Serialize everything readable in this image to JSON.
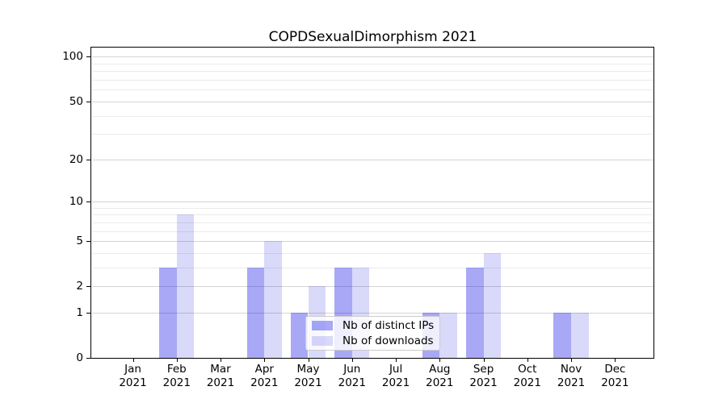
{
  "chart_data": {
    "type": "bar",
    "title": "COPDSexualDimorphism 2021",
    "categories": [
      "Jan",
      "Feb",
      "Mar",
      "Apr",
      "May",
      "Jun",
      "Jul",
      "Aug",
      "Sep",
      "Oct",
      "Nov",
      "Dec"
    ],
    "category_year": "2021",
    "series": [
      {
        "name": "Nb of distinct IPs",
        "values": [
          0,
          3,
          0,
          3,
          1,
          3,
          0,
          1,
          3,
          0,
          1,
          0
        ],
        "color": "rgba(0,0,230,0.34)"
      },
      {
        "name": "Nb of downloads",
        "values": [
          0,
          8,
          0,
          5,
          2,
          3,
          0,
          1,
          4,
          0,
          1,
          0
        ],
        "color": "rgba(0,0,220,0.15)"
      }
    ],
    "yscale": "log1p",
    "ylim": [
      0,
      116
    ],
    "yticks_major": [
      0,
      1,
      2,
      5,
      10,
      20,
      50,
      100
    ],
    "yticks_minor": [
      3,
      4,
      6,
      7,
      8,
      9,
      30,
      40,
      60,
      70,
      80,
      90
    ],
    "grid": "horizontal",
    "legend": {
      "position": "lower-center",
      "entries": [
        "Nb of distinct IPs",
        "Nb of downloads"
      ]
    },
    "colors": {
      "bar_distinct_ips": "rgba(0,0,230,0.34)",
      "bar_downloads": "rgba(0,0,220,0.15)",
      "grid_major": "#d4d4d4",
      "grid_minor": "#ebebeb",
      "axis": "#000000",
      "legend_border": "#cccccc"
    }
  }
}
